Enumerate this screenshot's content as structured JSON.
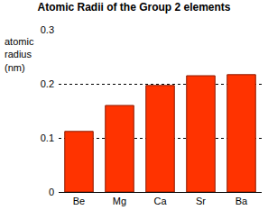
{
  "chart_data": {
    "type": "bar",
    "title": "Atomic Radii of the Group 2 elements",
    "y_label": "atomic radius (nm)",
    "categories": [
      "Be",
      "Mg",
      "Ca",
      "Sr",
      "Ba"
    ],
    "values": [
      0.112,
      0.16,
      0.197,
      0.215,
      0.217
    ],
    "color": "#ff3300",
    "ylim": [
      0,
      0.3
    ],
    "yticks": [
      0,
      0.1,
      0.2,
      0.3
    ],
    "grid": true
  }
}
